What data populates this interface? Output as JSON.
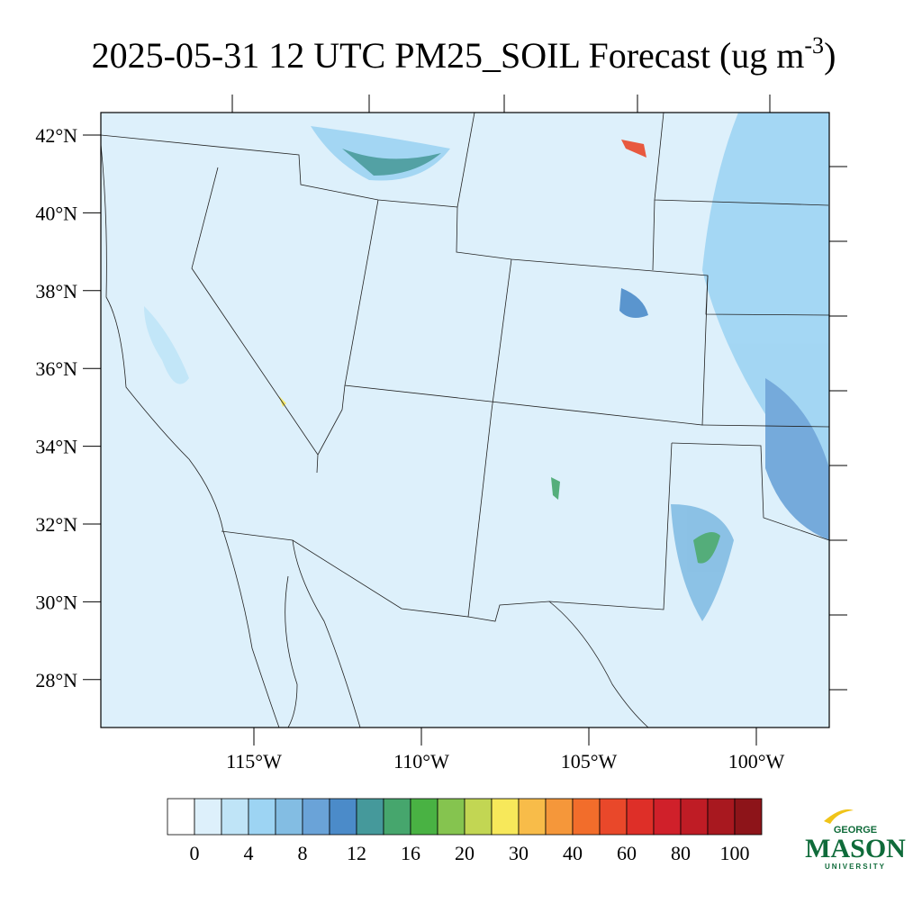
{
  "title": {
    "main": "2025-05-31 12 UTC PM25_SOIL Forecast (ug m",
    "superscript": "-3",
    "end": ")"
  },
  "map": {
    "lat_labels": [
      "42°N",
      "40°N",
      "38°N",
      "36°N",
      "34°N",
      "32°N",
      "30°N",
      "28°N"
    ],
    "lon_labels": [
      "115°W",
      "110°W",
      "105°W",
      "100°W"
    ]
  },
  "colorbar": {
    "colors": [
      "#ffffff",
      "#ddf0fb",
      "#bfe4f7",
      "#9dd4f3",
      "#83bde3",
      "#6aa3d8",
      "#4b8bc9",
      "#45999b",
      "#46a66d",
      "#49b243",
      "#85c44f",
      "#c2d653",
      "#f7e85a",
      "#f8bc49",
      "#f5973a",
      "#f26d2b",
      "#e9482a",
      "#de2f28",
      "#d0202a",
      "#bf1c25",
      "#a8181f",
      "#8d1419"
    ],
    "labels": [
      0,
      4,
      8,
      12,
      16,
      20,
      30,
      40,
      60,
      80,
      100
    ]
  },
  "logo": {
    "top": "GEORGE",
    "name": "MASON",
    "bottom": "UNIVERSITY"
  }
}
